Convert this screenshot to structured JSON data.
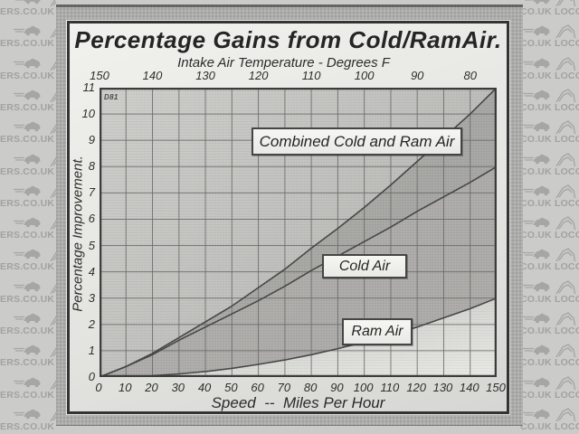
{
  "watermark": {
    "left_text": "ERS.CO.UK LO",
    "right_text": "CO.UK LOCOST",
    "icons": [
      "roadster-side-icon",
      "car-sketch-icon"
    ]
  },
  "chart": {
    "corner_note": "D81"
  },
  "chart_data": {
    "type": "line",
    "title": "Percentage Gains from Cold/RamAir.",
    "top_axis_label": "Intake Air Temperature - Degrees F",
    "xlabel": "Speed  --  Miles Per Hour",
    "ylabel": "Percentage Improvement.",
    "xlim": [
      0,
      150
    ],
    "ylim": [
      0,
      11
    ],
    "grid": true,
    "legend_position": "inline-boxes",
    "x_ticks": [
      0,
      10,
      20,
      30,
      40,
      50,
      60,
      70,
      80,
      90,
      100,
      110,
      120,
      130,
      140,
      150
    ],
    "y_ticks": [
      0,
      1,
      2,
      3,
      4,
      5,
      6,
      7,
      8,
      9,
      10,
      11
    ],
    "top_axis_ticks": {
      "labels": [
        "150",
        "140",
        "130",
        "120",
        "110",
        "100",
        "90",
        "80"
      ],
      "at_speed": [
        0,
        20,
        40,
        60,
        80,
        100,
        120,
        140
      ]
    },
    "x": [
      0,
      10,
      20,
      30,
      40,
      50,
      60,
      70,
      80,
      90,
      100,
      110,
      120,
      130,
      140,
      150
    ],
    "series": [
      {
        "name": "Combined Cold and Ram Air",
        "values": [
          0,
          0.4,
          0.9,
          1.5,
          2.1,
          2.7,
          3.4,
          4.1,
          4.9,
          5.65,
          6.45,
          7.3,
          8.2,
          9.1,
          10.0,
          11.0
        ]
      },
      {
        "name": "Cold Air",
        "values": [
          0,
          0.4,
          0.85,
          1.4,
          1.9,
          2.4,
          2.9,
          3.45,
          4.05,
          4.6,
          5.15,
          5.7,
          6.3,
          6.85,
          7.4,
          8.0
        ]
      },
      {
        "name": "Ram Air",
        "values": [
          0,
          0.01,
          0.05,
          0.12,
          0.21,
          0.33,
          0.48,
          0.65,
          0.85,
          1.08,
          1.33,
          1.6,
          1.9,
          2.25,
          2.6,
          3.0
        ]
      }
    ],
    "colors": {
      "ink": "#3a3a38",
      "plot_bg": "#bdbdba",
      "band_dark": "#a4a4a1",
      "band_mid": "#abaaa7",
      "below_light": "#e9e9e5",
      "page": "#e9e9e6",
      "watermark_bg": "#cbcbc9",
      "watermark_ink": "#a0a09e"
    }
  }
}
